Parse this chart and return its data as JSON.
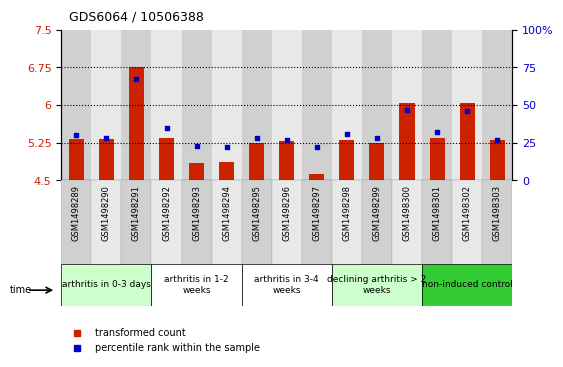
{
  "title": "GDS6064 / 10506388",
  "samples": [
    "GSM1498289",
    "GSM1498290",
    "GSM1498291",
    "GSM1498292",
    "GSM1498293",
    "GSM1498294",
    "GSM1498295",
    "GSM1498296",
    "GSM1498297",
    "GSM1498298",
    "GSM1498299",
    "GSM1498300",
    "GSM1498301",
    "GSM1498302",
    "GSM1498303"
  ],
  "transformed_count": [
    5.32,
    5.32,
    6.75,
    5.35,
    4.85,
    4.87,
    5.25,
    5.28,
    4.63,
    5.3,
    5.25,
    6.05,
    5.35,
    6.05,
    5.3
  ],
  "percentile_rank": [
    30,
    28,
    67,
    35,
    23,
    22,
    28,
    27,
    22,
    31,
    28,
    47,
    32,
    46,
    27
  ],
  "ylim_left": [
    4.5,
    7.5
  ],
  "ylim_right": [
    0,
    100
  ],
  "yticks_left": [
    4.5,
    5.25,
    6.0,
    6.75,
    7.5
  ],
  "yticks_right": [
    0,
    25,
    50,
    75,
    100
  ],
  "ytick_labels_left": [
    "4.5",
    "5.25",
    "6",
    "6.75",
    "7.5"
  ],
  "ytick_labels_right": [
    "0",
    "25",
    "50",
    "75",
    "100%"
  ],
  "hlines": [
    5.25,
    6.0,
    6.75
  ],
  "bar_color": "#cc2200",
  "percentile_color": "#0000cc",
  "bar_width": 0.5,
  "groups": [
    {
      "label": "arthritis in 0-3 days",
      "start": 0,
      "end": 3,
      "color": "#ccffcc"
    },
    {
      "label": "arthritis in 1-2\nweeks",
      "start": 3,
      "end": 6,
      "color": "#ffffff"
    },
    {
      "label": "arthritis in 3-4\nweeks",
      "start": 6,
      "end": 9,
      "color": "#ffffff"
    },
    {
      "label": "declining arthritis > 2\nweeks",
      "start": 9,
      "end": 12,
      "color": "#ccffcc"
    },
    {
      "label": "non-induced control",
      "start": 12,
      "end": 15,
      "color": "#33cc33"
    }
  ],
  "legend_red_label": "transformed count",
  "legend_blue_label": "percentile rank within the sample",
  "time_label": "time",
  "background_color": "#ffffff",
  "plot_bg_color": "#ffffff",
  "cell_colors": [
    "#d0d0d0",
    "#e8e8e8"
  ],
  "tick_label_fontsize": 6,
  "group_label_fontsize": 6.5,
  "title_fontsize": 9
}
